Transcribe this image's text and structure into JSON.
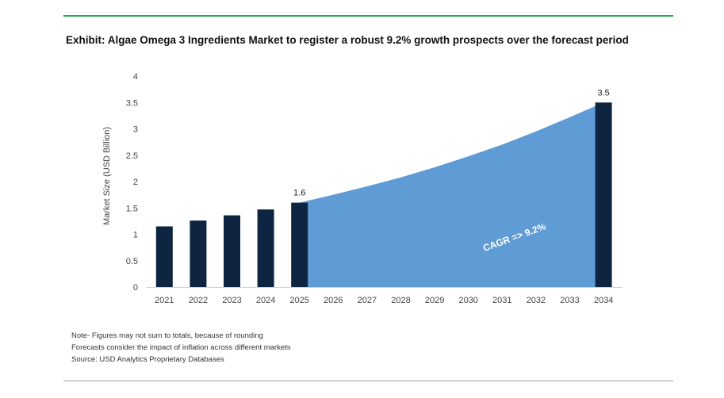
{
  "title": "Exhibit: Algae Omega 3 Ingredients Market to register a robust 9.2% growth prospects over the forecast period",
  "notes": [
    "Note- Figures may not sum to totals, because of rounding",
    "Forecasts consider the impact of inflation across different markets",
    "Source: USD Analytics Proprietary Databases"
  ],
  "chart_data": {
    "type": "bar",
    "categories": [
      "2021",
      "2022",
      "2023",
      "2024",
      "2025",
      "2026",
      "2027",
      "2028",
      "2029",
      "2030",
      "2031",
      "2032",
      "2033",
      "2034"
    ],
    "series": [
      {
        "values": [
          1.15,
          1.26,
          1.36,
          1.47,
          1.6,
          null,
          null,
          null,
          null,
          null,
          null,
          null,
          null,
          3.5
        ]
      }
    ],
    "forecast_area": {
      "x": [
        "2025",
        "2026",
        "2027",
        "2028",
        "2029",
        "2030",
        "2031",
        "2032",
        "2033",
        "2034"
      ],
      "values": [
        1.6,
        1.75,
        1.91,
        2.08,
        2.27,
        2.48,
        2.7,
        2.95,
        3.22,
        3.5
      ]
    },
    "data_labels": [
      {
        "category": "2025",
        "text": "1.6"
      },
      {
        "category": "2034",
        "text": "3.5"
      }
    ],
    "annotation": "CAGR => 9.2%",
    "ylabel": "Market Size (USD Billion)",
    "xlabel": "",
    "ylim": [
      0,
      4
    ],
    "yticks": [
      "0",
      "0.5",
      "1",
      "1.5",
      "2",
      "2.5",
      "3",
      "3.5",
      "4"
    ],
    "grid": false,
    "legend": "none",
    "colors": {
      "bar": "#0d2540",
      "area": "#5f9bd5",
      "accent_rule": "#2aa84a"
    }
  }
}
